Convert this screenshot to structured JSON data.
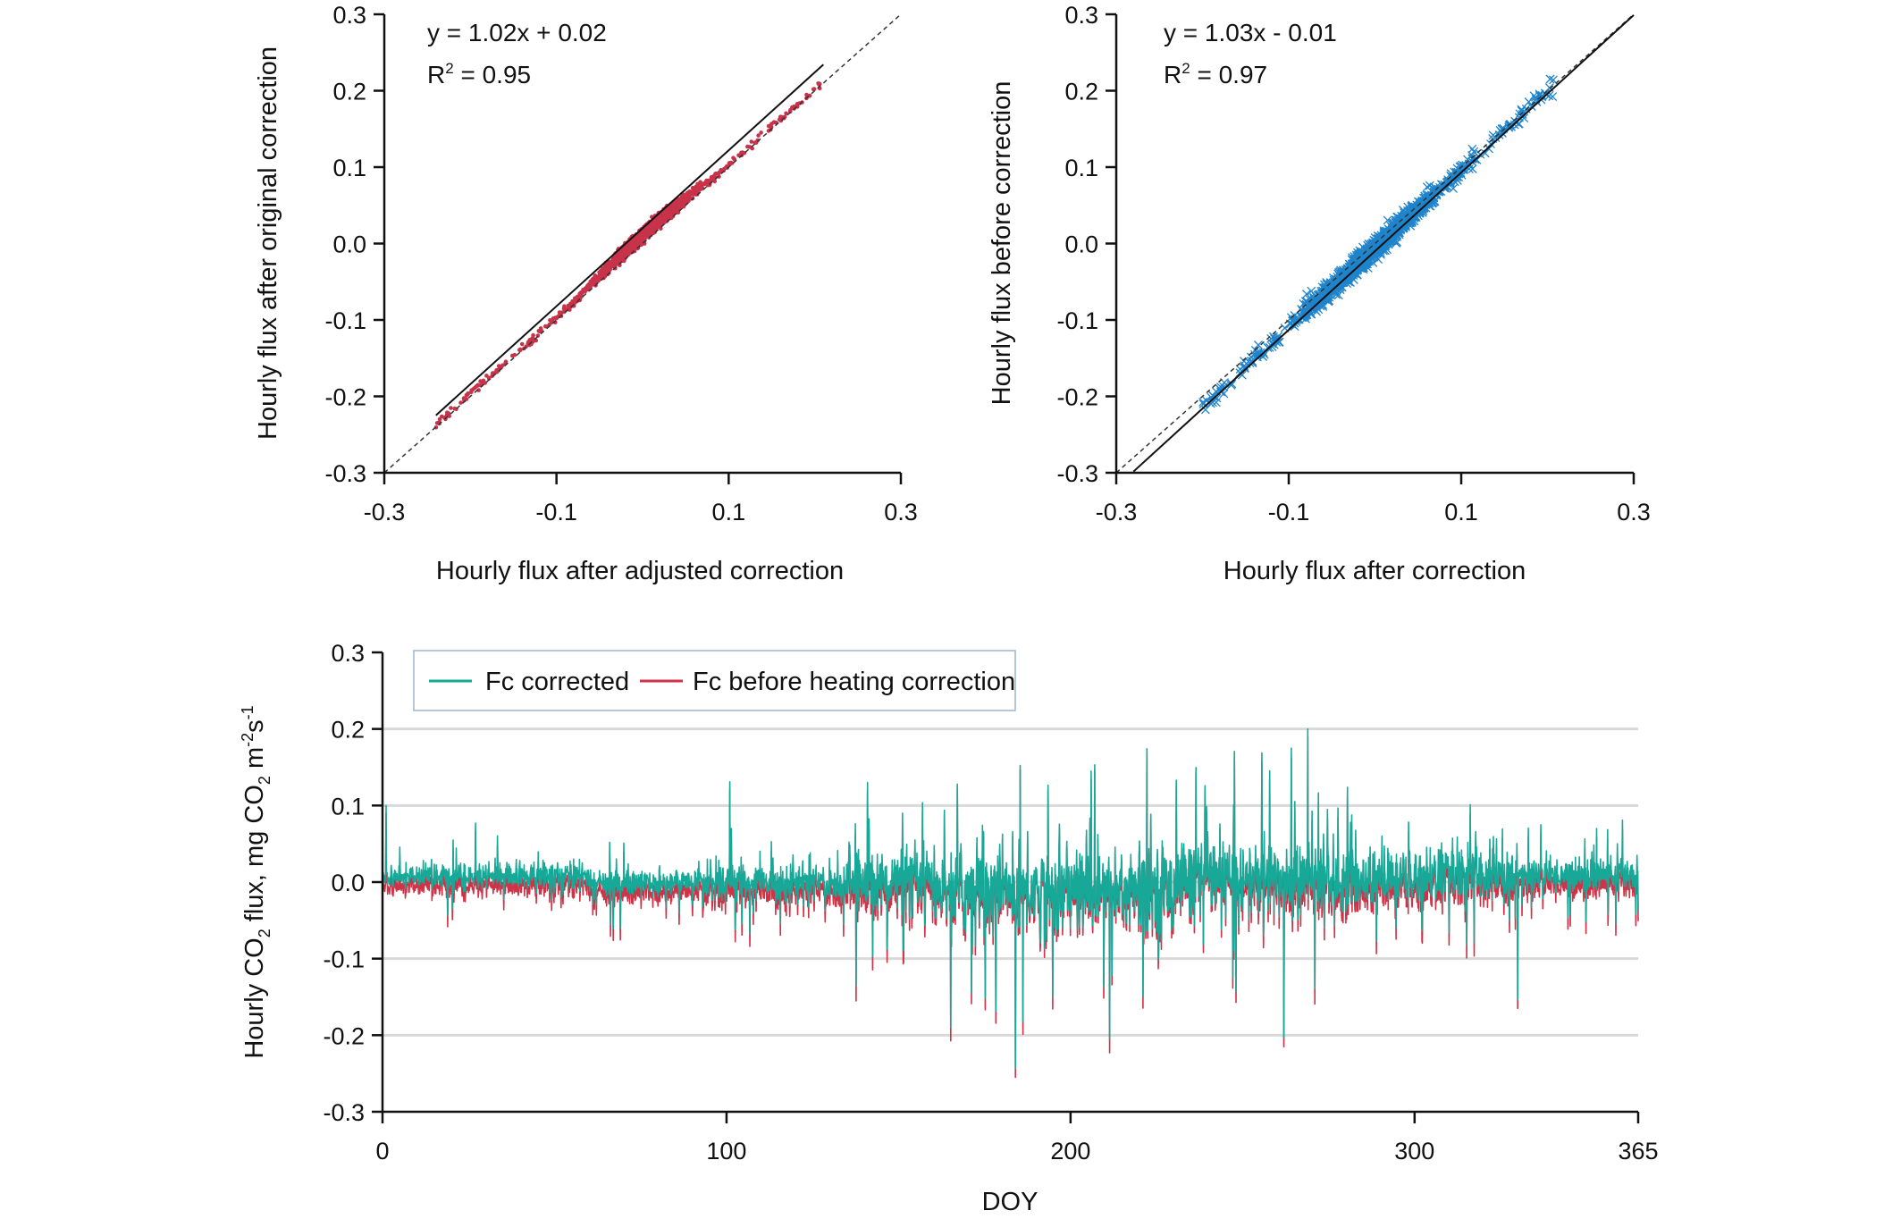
{
  "colors": {
    "scatter_red": "#c8334a",
    "scatter_blue": "#1f84cc",
    "fc_corrected": "#17a898",
    "fc_before": "#cf3347",
    "gridline": "#d9d9d9",
    "legend_border": "#9fb3cf"
  },
  "chart_data": [
    {
      "type": "scatter",
      "x_ticks": [
        "-0.3",
        "-0.1",
        "0.1",
        "0.3"
      ],
      "y_ticks": [
        "-0.3",
        "-0.2",
        "-0.1",
        "0.0",
        "0.1",
        "0.2",
        "0.3"
      ],
      "xlabel": "Hourly flux after adjusted correction",
      "ylabel": "Hourly flux after original correction",
      "xlim": [
        -0.3,
        0.3
      ],
      "ylim": [
        -0.3,
        0.3
      ],
      "equation": "y = 1.02x + 0.02",
      "r2_prefix": "R",
      "r2_sup": "2",
      "r2_value": " = 0.95",
      "marker": "dot",
      "fit": {
        "slope": 1.02,
        "intercept": 0.02,
        "x_range": [
          -0.24,
          0.21
        ]
      },
      "one_to_one_line": true,
      "points_summary": {
        "x_range": [
          -0.24,
          0.21
        ],
        "dense_x_range": [
          -0.08,
          0.08
        ]
      }
    },
    {
      "type": "scatter",
      "x_ticks": [
        "-0.3",
        "-0.1",
        "0.1",
        "0.3"
      ],
      "y_ticks": [
        "-0.3",
        "-0.2",
        "-0.1",
        "0.0",
        "0.1",
        "0.2",
        "0.3"
      ],
      "xlabel": "Hourly flux after correction",
      "ylabel": "Hourly flux before correction",
      "xlim": [
        -0.3,
        0.3
      ],
      "ylim": [
        -0.3,
        0.3
      ],
      "equation": "y = 1.03x - 0.01",
      "r2_prefix": "R",
      "r2_sup": "2",
      "r2_value": " = 0.97",
      "marker": "cross",
      "fit": {
        "slope": 1.03,
        "intercept": -0.01,
        "x_range": [
          -0.28,
          0.3
        ]
      },
      "one_to_one_line": true,
      "points_summary": {
        "x_range": [
          -0.2,
          0.21
        ],
        "dense_x_range": [
          -0.09,
          0.09
        ]
      }
    },
    {
      "type": "line",
      "x_ticks": [
        "0",
        "100",
        "200",
        "300",
        "365"
      ],
      "y_ticks": [
        "-0.3",
        "-0.2",
        "-0.1",
        "0.0",
        "0.1",
        "0.2",
        "0.3"
      ],
      "xlabel": "DOY",
      "ylabel": {
        "parts": [
          "Hourly CO",
          "2",
          " flux, mg CO",
          "2",
          " m",
          "-2",
          "s",
          "-1"
        ]
      },
      "xlim": [
        0,
        365
      ],
      "ylim": [
        -0.3,
        0.3
      ],
      "grid": "horizontal",
      "legend_position": "top-left",
      "series": [
        {
          "name": "Fc corrected",
          "color_key": "fc_corrected"
        },
        {
          "name": "Fc before heating correction",
          "color_key": "fc_before"
        }
      ],
      "peaks": [
        {
          "x": 1,
          "y": 0.1
        },
        {
          "x": 27,
          "y": 0.077
        },
        {
          "x": 101,
          "y": 0.131
        },
        {
          "x": 141,
          "y": 0.13
        },
        {
          "x": 184,
          "y": -0.255
        },
        {
          "x": 206,
          "y": 0.145
        },
        {
          "x": 262,
          "y": 0.211
        },
        {
          "x": 269,
          "y": 0.2
        },
        {
          "x": 262,
          "y": -0.215
        },
        {
          "x": 330,
          "y": -0.165
        }
      ]
    }
  ]
}
